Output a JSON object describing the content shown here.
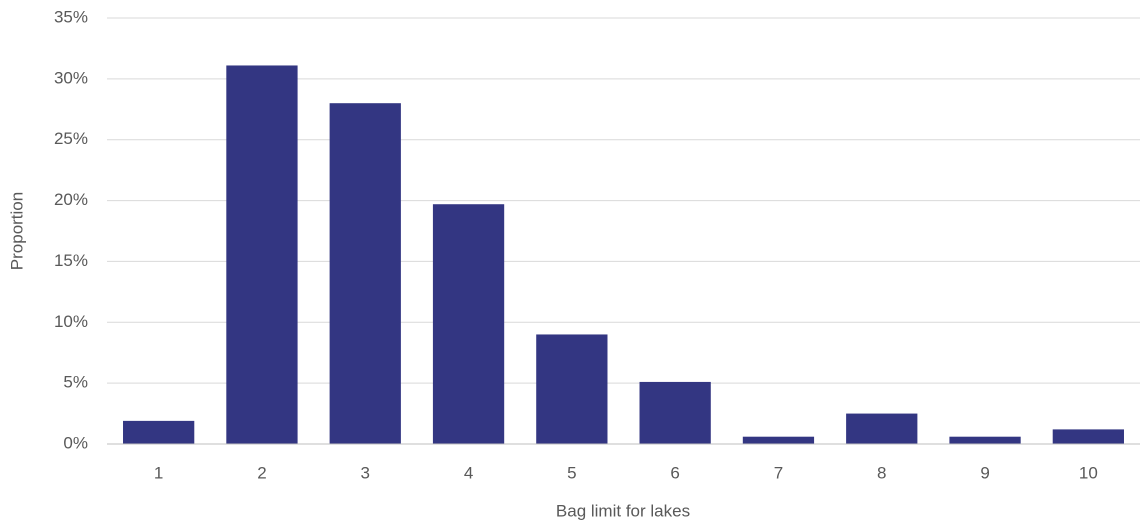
{
  "chart_data": {
    "type": "bar",
    "x_label": "Bag limit for lakes",
    "y_label": "Proportion",
    "categories": [
      "1",
      "2",
      "3",
      "4",
      "5",
      "6",
      "7",
      "8",
      "9",
      "10"
    ],
    "values": [
      1.9,
      31.1,
      28.0,
      19.7,
      9.0,
      5.1,
      0.6,
      2.5,
      0.6,
      1.2
    ],
    "color": "#333682",
    "ylim": [
      0,
      35
    ],
    "yticks": [
      {
        "value": 0,
        "label": "0%"
      },
      {
        "value": 5,
        "label": "5%"
      },
      {
        "value": 10,
        "label": "10%"
      },
      {
        "value": 15,
        "label": "15%"
      },
      {
        "value": 20,
        "label": "20%"
      },
      {
        "value": 25,
        "label": "25%"
      },
      {
        "value": 30,
        "label": "30%"
      },
      {
        "value": 35,
        "label": "35%"
      }
    ],
    "grid": true
  }
}
